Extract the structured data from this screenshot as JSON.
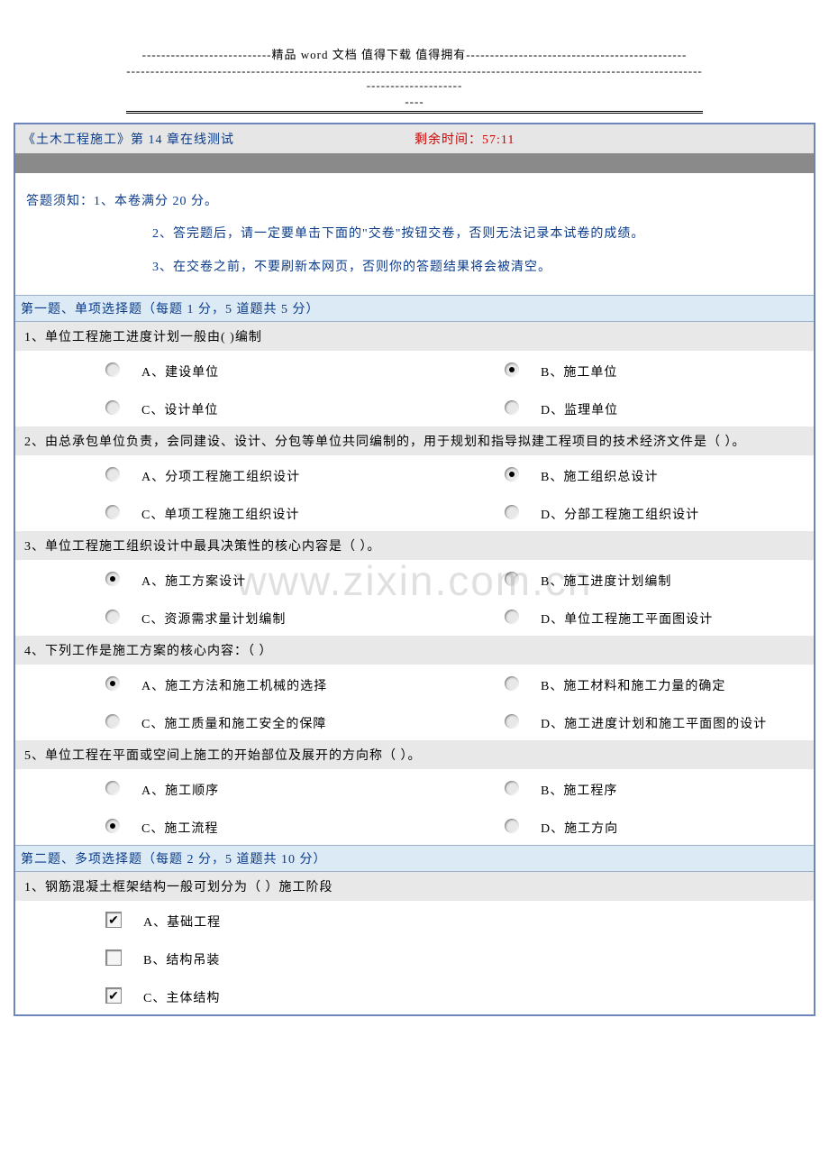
{
  "doc_header": {
    "line1": "---------------------------精品 word 文档  值得下载  值得拥有----------------------------------------------",
    "line2": "--------------------------------------------------------------------------------------------------------------------------------------------",
    "tail": "----"
  },
  "title": {
    "left": "《土木工程施工》第 14 章在线测试",
    "right": "剩余时间：57:11"
  },
  "instructions": {
    "prefix": "答题须知：",
    "i1": "1、本卷满分 20 分。",
    "i2": "2、答完题后，请一定要单击下面的\"交卷\"按钮交卷，否则无法记录本试卷的成绩。",
    "i3": "3、在交卷之前，不要刷新本网页，否则你的答题结果将会被清空。"
  },
  "section1": {
    "header": "第一题、单项选择题（每题 1 分，5 道题共 5 分）",
    "questions": [
      {
        "stem": "1、单位工程施工进度计划一般由( )编制",
        "A": "A、建设单位",
        "B": "B、施工单位",
        "C": "C、设计单位",
        "D": "D、监理单位",
        "selected": "B"
      },
      {
        "stem": "2、由总承包单位负责，会同建设、设计、分包等单位共同编制的，用于规划和指导拟建工程项目的技术经济文件是（ ）。",
        "A": "A、分项工程施工组织设计",
        "B": "B、施工组织总设计",
        "C": "C、单项工程施工组织设计",
        "D": "D、分部工程施工组织设计",
        "selected": "B"
      },
      {
        "stem": "3、单位工程施工组织设计中最具决策性的核心内容是（ ）。",
        "A": "A、施工方案设计",
        "B": "B、施工进度计划编制",
        "C": "C、资源需求量计划编制",
        "D": "D、单位工程施工平面图设计",
        "selected": "A"
      },
      {
        "stem": "4、下列工作是施工方案的核心内容：（ ）",
        "A": "A、施工方法和施工机械的选择",
        "B": "B、施工材料和施工力量的确定",
        "C": "C、施工质量和施工安全的保障",
        "D": "D、施工进度计划和施工平面图的设计",
        "selected": "A"
      },
      {
        "stem": "5、单位工程在平面或空间上施工的开始部位及展开的方向称（ ）。",
        "A": "A、施工顺序",
        "B": "B、施工程序",
        "C": "C、施工流程",
        "D": "D、施工方向",
        "selected": "C"
      }
    ]
  },
  "section2": {
    "header": "第二题、多项选择题（每题 2 分，5 道题共 10 分）",
    "questions": [
      {
        "stem": "1、钢筋混凝土框架结构一般可划分为（ ）施工阶段",
        "options": [
          {
            "label": "A、基础工程",
            "checked": true
          },
          {
            "label": "B、结构吊装",
            "checked": false
          },
          {
            "label": "C、主体结构",
            "checked": true
          }
        ]
      }
    ]
  },
  "watermark": "www.zixin.com.cn",
  "colors": {
    "border": "#6d85bb",
    "section_bg": "#dbeaf5",
    "stem_bg": "#e8e8e8",
    "title_bg": "#e6e6e6",
    "darkbar": "#8a8a8a",
    "blue_text": "#0a3b8a",
    "red_text": "#cc0000"
  }
}
